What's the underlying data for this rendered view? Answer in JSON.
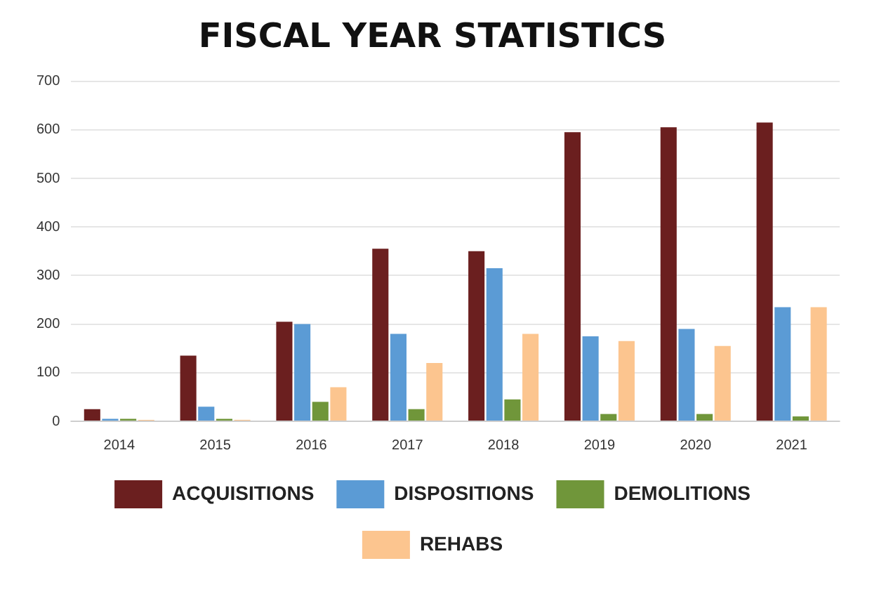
{
  "chart_data": {
    "type": "bar",
    "title": "FISCAL YEAR STATISTICS",
    "categories": [
      "2014",
      "2015",
      "2016",
      "2017",
      "2018",
      "2019",
      "2020",
      "2021"
    ],
    "series": [
      {
        "name": "ACQUISITIONS",
        "color": "#6b1f1f",
        "values": [
          25,
          135,
          205,
          355,
          350,
          595,
          605,
          615
        ]
      },
      {
        "name": "DISPOSITIONS",
        "color": "#5b9bd5",
        "values": [
          5,
          30,
          200,
          180,
          315,
          175,
          190,
          235
        ]
      },
      {
        "name": "DEMOLITIONS",
        "color": "#70963a",
        "values": [
          5,
          5,
          40,
          25,
          45,
          15,
          15,
          10
        ]
      },
      {
        "name": "REHABS",
        "color": "#fcc58f",
        "values": [
          3,
          3,
          70,
          120,
          180,
          165,
          155,
          235
        ]
      }
    ],
    "ylim": [
      0,
      700
    ],
    "yticks": [
      0,
      100,
      200,
      300,
      400,
      500,
      600,
      700
    ],
    "grid": "y",
    "legend": "bottom"
  }
}
